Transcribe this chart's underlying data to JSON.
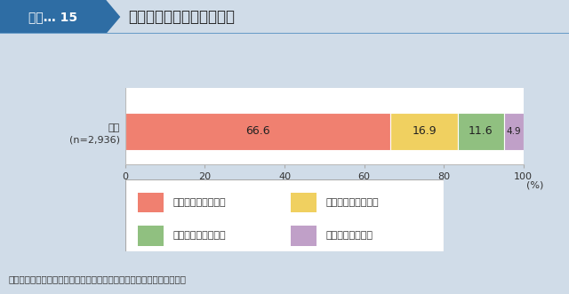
{
  "title_box_label": "図表… 15",
  "title_text": "バランスの良い食事の頻度",
  "bar_label": "総数\n(n=2,936)",
  "segments": [
    66.6,
    16.9,
    11.6,
    4.9
  ],
  "colors": [
    "#F08070",
    "#F0D060",
    "#90C080",
    "#C0A0C8"
  ],
  "segment_labels": [
    "66.6",
    "16.9",
    "11.6",
    "4.9"
  ],
  "legend_labels": [
    "ほとんど毎日食べる",
    "週に４～５日食べる",
    "週に２～３日食べる",
    "ほとんど食べない"
  ],
  "legend_colors": [
    "#F08070",
    "#F0D060",
    "#90C080",
    "#C0A0C8"
  ],
  "xlabel": "(%)",
  "xlim": [
    0,
    100
  ],
  "xticks": [
    0,
    20,
    40,
    60,
    80,
    100
  ],
  "source_text": "資料：内閣府「食育の現状と意識に関する調査」（平成２１年１２月）",
  "bg_outer": "#D0DCE8",
  "bg_inner": "#FFFFFF",
  "header_bg": "#2E6DA4",
  "title_divider_color": "#6A9DC8"
}
